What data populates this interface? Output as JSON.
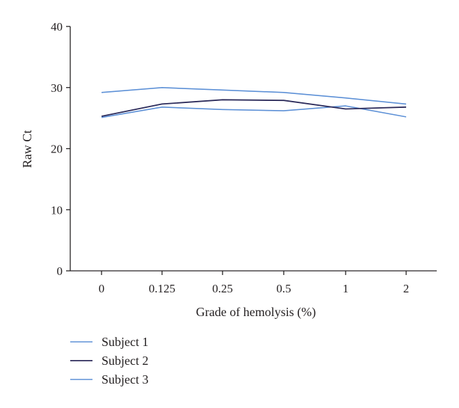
{
  "chart_data": {
    "type": "line",
    "title": "",
    "xlabel": "Grade of hemolysis (%)",
    "ylabel": "Raw Ct",
    "categories": [
      "0",
      "0.125",
      "0.25",
      "0.5",
      "1",
      "2"
    ],
    "ylim": [
      0,
      40
    ],
    "yticks": [
      "0",
      "10",
      "20",
      "30",
      "40"
    ],
    "grid": false,
    "legend_position": "bottom-left",
    "series": [
      {
        "name": "Subject 1",
        "color": "#5b8fd6",
        "values": [
          25.1,
          26.8,
          26.4,
          26.2,
          27.0,
          25.2
        ]
      },
      {
        "name": "Subject 2",
        "color": "#2b2a5a",
        "values": [
          25.3,
          27.3,
          28.0,
          27.9,
          26.5,
          26.8
        ]
      },
      {
        "name": "Subject 3",
        "color": "#5b8fd6",
        "values": [
          29.2,
          30.0,
          29.6,
          29.2,
          28.3,
          27.3
        ]
      }
    ]
  }
}
